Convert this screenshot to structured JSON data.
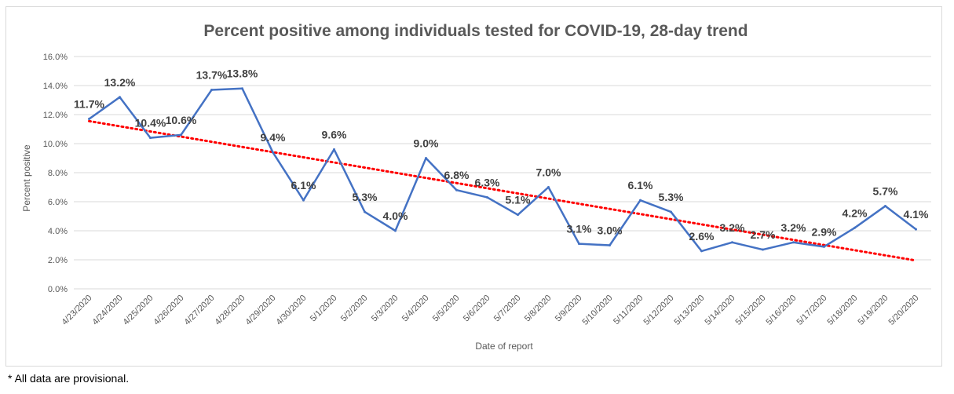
{
  "chart_data": {
    "type": "line",
    "title": "Percent positive among individuals tested for COVID-19, 28-day trend",
    "xlabel": "Date of report",
    "ylabel": "Percent positive",
    "ylim": [
      0,
      16
    ],
    "y_ticks": [
      "0.0%",
      "2.0%",
      "4.0%",
      "6.0%",
      "8.0%",
      "10.0%",
      "12.0%",
      "14.0%",
      "16.0%"
    ],
    "grid": true,
    "x": [
      "4/23/2020",
      "4/24/2020",
      "4/25/2020",
      "4/26/2020",
      "4/27/2020",
      "4/28/2020",
      "4/29/2020",
      "4/30/2020",
      "5/1/2020",
      "5/2/2020",
      "5/3/2020",
      "5/4/2020",
      "5/5/2020",
      "5/6/2020",
      "5/7/2020",
      "5/8/2020",
      "5/9/2020",
      "5/10/2020",
      "5/11/2020",
      "5/12/2020",
      "5/13/2020",
      "5/14/2020",
      "5/15/2020",
      "5/16/2020",
      "5/17/2020",
      "5/18/2020",
      "5/19/2020",
      "5/20/2020"
    ],
    "series": [
      {
        "values": [
          11.7,
          13.2,
          10.4,
          10.6,
          13.7,
          13.8,
          9.4,
          6.1,
          9.6,
          5.3,
          4.0,
          9.0,
          6.8,
          6.3,
          5.1,
          7.0,
          3.1,
          3.0,
          6.1,
          5.3,
          2.6,
          3.2,
          2.7,
          3.2,
          2.9,
          4.2,
          5.7,
          4.1
        ],
        "labels": [
          "11.7%",
          "13.2%",
          "10.4%",
          "10.6%",
          "13.7%",
          "13.8%",
          "9.4%",
          "6.1%",
          "9.6%",
          "5.3%",
          "4.0%",
          "9.0%",
          "6.8%",
          "6.3%",
          "5.1%",
          "7.0%",
          "3.1%",
          "3.0%",
          "6.1%",
          "5.3%",
          "2.6%",
          "3.2%",
          "2.7%",
          "3.2%",
          "2.9%",
          "4.2%",
          "5.7%",
          "4.1%"
        ],
        "color": "#4472c4"
      }
    ],
    "trendline": {
      "type": "linear",
      "style": "dotted",
      "color": "#ff0000",
      "start": 11.55,
      "end": 1.95
    }
  },
  "footnote": "* All data are provisional."
}
